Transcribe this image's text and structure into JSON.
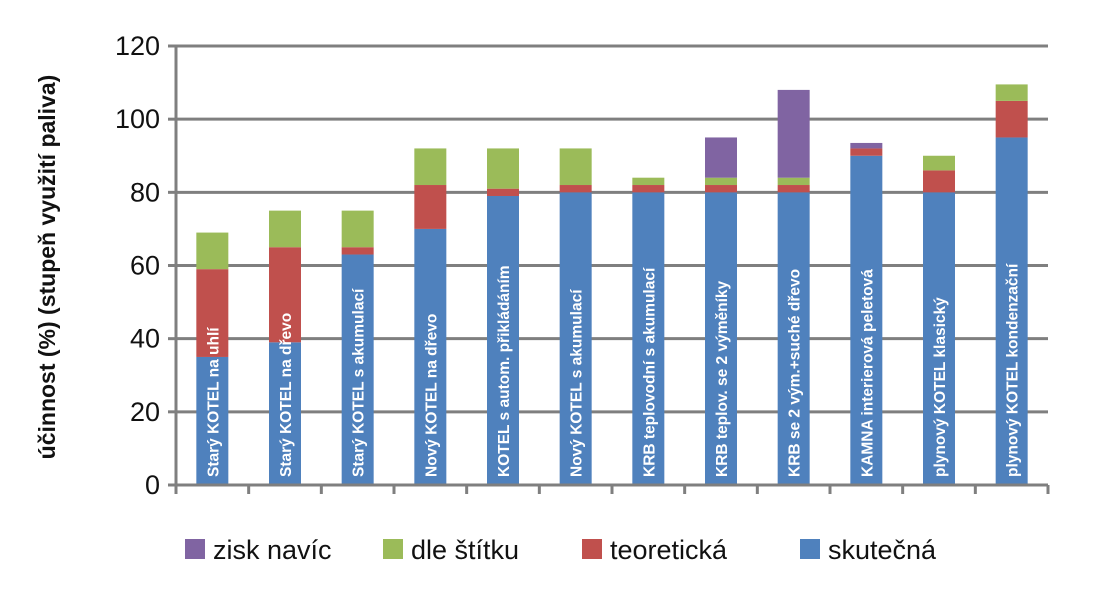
{
  "chart_data": {
    "type": "bar",
    "stacked": true,
    "ylabel": "účinnost (%) (stupeň využití paliva)",
    "ylim": [
      0,
      120
    ],
    "yticks": [
      0,
      20,
      40,
      60,
      80,
      100,
      120
    ],
    "grid": true,
    "legend_position": "bottom",
    "categories": [
      "Starý KOTEL na uhlí",
      "Starý KOTEL na dřevo",
      "Starý KOTEL s akumulací",
      "Nový KOTEL na dřevo",
      "KOTEL s autom. přikládáním",
      "Nový KOTEL s akumulací",
      "KRB teplovodní s akumulací",
      "KRB teplov. se 2 výměníky",
      "KRB se 2 vým.+suché dřevo",
      "KAMNA interierová peletová",
      "plynový KOTEL klasický",
      "plynový KOTEL kondenzační"
    ],
    "series": [
      {
        "name": "skutečná",
        "color": "#4f81bd",
        "values": [
          35,
          39,
          63,
          70,
          79,
          80,
          80,
          80,
          80,
          90,
          80,
          95
        ]
      },
      {
        "name": "teoretická",
        "color": "#c0504d",
        "values": [
          24,
          26,
          2,
          12,
          2,
          2,
          2,
          2,
          2,
          2,
          6,
          10
        ]
      },
      {
        "name": "dle štítku",
        "color": "#9bbb59",
        "values": [
          10,
          10,
          10,
          10,
          11,
          10,
          2,
          2,
          2,
          0,
          4,
          4.5
        ]
      },
      {
        "name": "zisk navíc",
        "color": "#8064a2",
        "values": [
          0,
          0,
          0,
          0,
          0,
          0,
          0,
          11,
          24,
          1.5,
          0,
          0
        ]
      }
    ],
    "legend_order": [
      "zisk navíc",
      "dle štítku",
      "teoretická",
      "skutečná"
    ]
  }
}
